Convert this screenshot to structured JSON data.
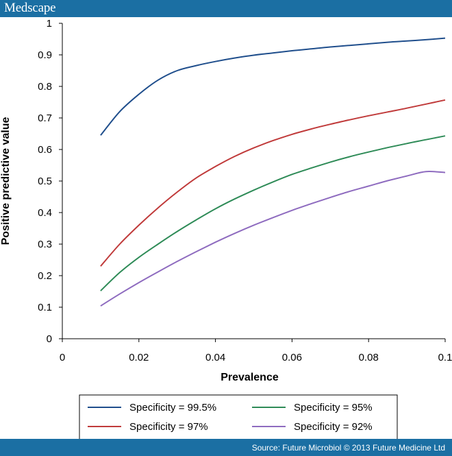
{
  "header": {
    "brand": "Medscape"
  },
  "footer": {
    "source": "Source: Future Microbiol © 2013 Future Medicine Ltd"
  },
  "chart_data": {
    "type": "line",
    "title": "",
    "xlabel": "Prevalence",
    "ylabel": "Positive predictive value",
    "xlim": [
      0,
      0.1
    ],
    "ylim": [
      0,
      1
    ],
    "xticks": [
      0,
      0.02,
      0.04,
      0.06,
      0.08,
      0.1
    ],
    "xtick_labels": [
      "0",
      "0.02",
      "0.04",
      "0.06",
      "0.08",
      "0.1"
    ],
    "yticks": [
      0,
      0.1,
      0.2,
      0.3,
      0.4,
      0.5,
      0.6,
      0.7,
      0.8,
      0.9,
      1
    ],
    "ytick_labels": [
      "0",
      "0.1",
      "0.2",
      "0.3",
      "0.4",
      "0.5",
      "0.6",
      "0.7",
      "0.8",
      "0.9",
      "1"
    ],
    "grid": false,
    "legend_position": "bottom",
    "x": [
      0.01,
      0.015,
      0.02,
      0.025,
      0.03,
      0.035,
      0.04,
      0.045,
      0.05,
      0.055,
      0.06,
      0.065,
      0.07,
      0.075,
      0.08,
      0.085,
      0.09,
      0.095,
      0.1
    ],
    "series": [
      {
        "name": "Specificity = 99.5%",
        "color": "#1f4e8c",
        "values": [
          0.645,
          0.72,
          0.775,
          0.82,
          0.85,
          0.866,
          0.879,
          0.89,
          0.899,
          0.906,
          0.913,
          0.919,
          0.925,
          0.93,
          0.935,
          0.94,
          0.944,
          0.948,
          0.953
        ]
      },
      {
        "name": "Specificity = 97%",
        "color": "#c03a3a",
        "values": [
          0.23,
          0.3,
          0.36,
          0.415,
          0.465,
          0.51,
          0.546,
          0.578,
          0.605,
          0.628,
          0.648,
          0.665,
          0.68,
          0.694,
          0.707,
          0.719,
          0.731,
          0.744,
          0.757
        ]
      },
      {
        "name": "Specificity = 95%",
        "color": "#2e8b57",
        "values": [
          0.152,
          0.21,
          0.258,
          0.3,
          0.34,
          0.377,
          0.412,
          0.443,
          0.471,
          0.497,
          0.521,
          0.541,
          0.56,
          0.577,
          0.592,
          0.606,
          0.619,
          0.631,
          0.643
        ]
      },
      {
        "name": "Specificity = 92%",
        "color": "#8e6bbf",
        "values": [
          0.104,
          0.142,
          0.178,
          0.212,
          0.245,
          0.276,
          0.306,
          0.334,
          0.36,
          0.384,
          0.407,
          0.428,
          0.448,
          0.467,
          0.484,
          0.501,
          0.516,
          0.53,
          0.527
        ]
      }
    ]
  }
}
